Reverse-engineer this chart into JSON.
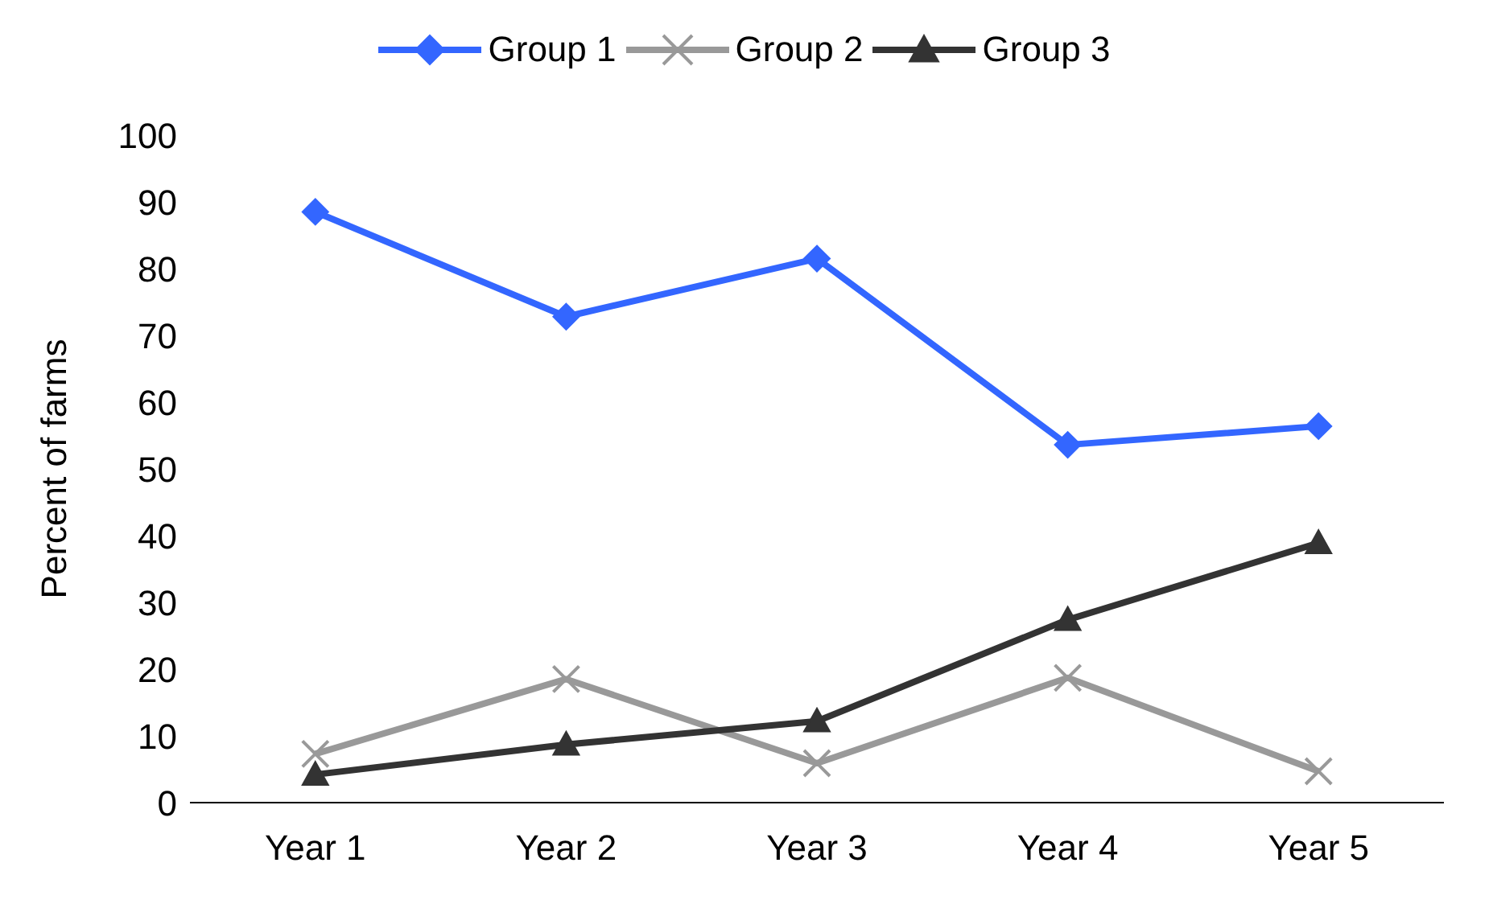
{
  "chart_data": {
    "type": "line",
    "ylabel": "Percent of farms",
    "categories": [
      "Year 1",
      "Year 2",
      "Year 3",
      "Year 4",
      "Year 5"
    ],
    "series": [
      {
        "name": "Group 1",
        "color": "#3366ff",
        "marker": "diamond",
        "values": [
          88.5,
          72.8,
          81.5,
          53.6,
          56.4
        ]
      },
      {
        "name": "Group 2",
        "color": "#999999",
        "marker": "cross",
        "values": [
          7.3,
          18.5,
          5.9,
          18.7,
          4.7
        ]
      },
      {
        "name": "Group 3",
        "color": "#333333",
        "marker": "triangle",
        "values": [
          4.2,
          8.7,
          12.2,
          27.4,
          38.9
        ]
      }
    ],
    "ylim": [
      0,
      100
    ],
    "yticks": [
      0,
      10,
      20,
      30,
      40,
      50,
      60,
      70,
      80,
      90,
      100
    ],
    "grid": false,
    "legend": "top",
    "line_style": "solid"
  }
}
